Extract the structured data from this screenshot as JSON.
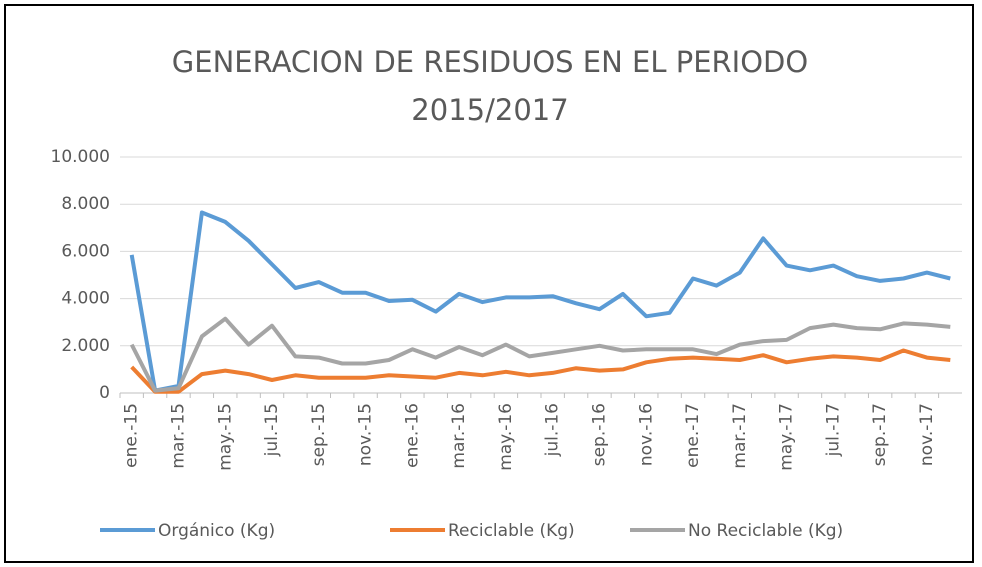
{
  "chart_data": {
    "type": "line",
    "title": "GENERACION DE RESIDUOS EN EL PERIODO 2015/2017",
    "categories": [
      "ene.-15",
      null,
      "mar.-15",
      null,
      "may.-15",
      null,
      "jul.-15",
      null,
      "sep.-15",
      null,
      "nov.-15",
      null,
      "ene.-16",
      null,
      "mar.-16",
      null,
      "may.-16",
      null,
      "jul.-16",
      null,
      "sep.-16",
      null,
      "nov.-16",
      null,
      "ene.-17",
      null,
      "mar.-17",
      null,
      "may.-17",
      null,
      "jul.-17",
      null,
      "sep.-17",
      null,
      "nov.-17",
      null
    ],
    "series": [
      {
        "name": "Orgánico (Kg)",
        "color": "#5b9bd5",
        "values": [
          5850,
          100,
          300,
          7650,
          7250,
          6450,
          5450,
          4450,
          4700,
          4250,
          4250,
          3900,
          3950,
          3450,
          4200,
          3850,
          4050,
          4050,
          4100,
          3800,
          3550,
          4200,
          3250,
          3400,
          4850,
          4550,
          5100,
          6550,
          5400,
          5200,
          5400,
          4950,
          4750,
          4850,
          5100,
          4850
        ]
      },
      {
        "name": "Reciclable (Kg)",
        "color": "#ed7d31",
        "values": [
          1100,
          50,
          50,
          800,
          950,
          800,
          550,
          750,
          650,
          650,
          650,
          750,
          700,
          650,
          850,
          750,
          900,
          750,
          850,
          1050,
          950,
          1000,
          1300,
          1450,
          1500,
          1450,
          1400,
          1600,
          1300,
          1450,
          1550,
          1500,
          1400,
          1800,
          1500,
          1400
        ]
      },
      {
        "name": "No Reciclable (Kg)",
        "color": "#a5a5a5",
        "values": [
          2050,
          100,
          200,
          2400,
          3150,
          2050,
          2850,
          1550,
          1500,
          1250,
          1250,
          1400,
          1850,
          1500,
          1950,
          1600,
          2050,
          1550,
          1700,
          1850,
          2000,
          1800,
          1850,
          1850,
          1850,
          1650,
          2050,
          2200,
          2250,
          2750,
          2900,
          2750,
          2700,
          2950,
          2900,
          2800
        ]
      }
    ],
    "ylim": [
      0,
      10000
    ],
    "yticks": [
      0,
      {
        "value": 2000,
        "label": "2.000"
      },
      {
        "value": 4000,
        "label": "4.000"
      },
      {
        "value": 6000,
        "label": "6.000"
      },
      {
        "value": 8000,
        "label": "8.000"
      },
      {
        "value": 10000,
        "label": "10.000"
      }
    ],
    "grid": true
  }
}
